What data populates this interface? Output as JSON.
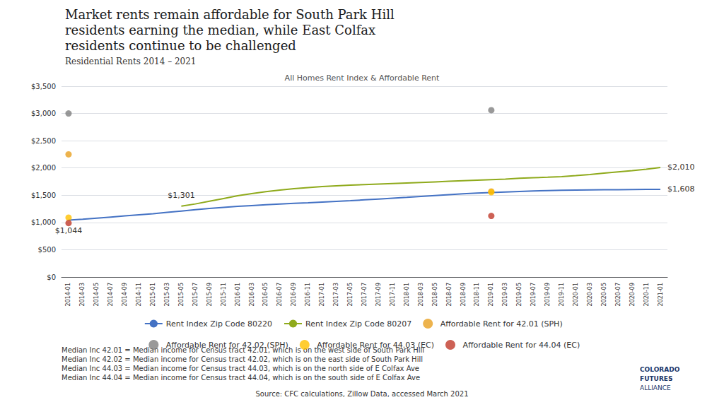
{
  "chart_data": {
    "type": "line",
    "title": "Market rents remain affordable for South Park Hill\nresidents earning the median, while East Colfax\nresidents continue to be challenged",
    "subtitle": "Residential Rents 2014 – 2021",
    "plot_title": "All Homes Rent Index & Affordable Rent",
    "categories": [
      "2014-01",
      "2014-03",
      "2014-05",
      "2014-07",
      "2014-09",
      "2014-11",
      "2015-01",
      "2015-03",
      "2015-05",
      "2015-07",
      "2015-09",
      "2015-11",
      "2016-01",
      "2016-03",
      "2016-05",
      "2016-07",
      "2016-09",
      "2016-11",
      "2017-01",
      "2017-03",
      "2017-05",
      "2017-07",
      "2017-09",
      "2017-11",
      "2018-01",
      "2018-03",
      "2018-05",
      "2018-07",
      "2018-09",
      "2018-11",
      "2019-01",
      "2019-03",
      "2019-05",
      "2019-07",
      "2019-09",
      "2019-11",
      "2020-01",
      "2020-03",
      "2020-05",
      "2020-07",
      "2020-09",
      "2020-11",
      "2021-01"
    ],
    "series": [
      {
        "name": "Rent Index Zip Code 80220",
        "type": "line",
        "color": "#4472c4",
        "values": [
          1044,
          1060,
          1080,
          1100,
          1120,
          1140,
          1160,
          1185,
          1210,
          1235,
          1258,
          1278,
          1295,
          1310,
          1325,
          1338,
          1350,
          1362,
          1375,
          1388,
          1400,
          1415,
          1430,
          1445,
          1460,
          1478,
          1495,
          1510,
          1525,
          1538,
          1550,
          1560,
          1570,
          1578,
          1585,
          1590,
          1595,
          1598,
          1600,
          1602,
          1604,
          1606,
          1608
        ],
        "value_labels": [
          "$1,044",
          null,
          null,
          null,
          null,
          null,
          null,
          null,
          null,
          null,
          null,
          null,
          null,
          null,
          null,
          null,
          null,
          null,
          null,
          null,
          null,
          null,
          null,
          null,
          null,
          null,
          null,
          null,
          null,
          null,
          null,
          null,
          null,
          null,
          null,
          null,
          null,
          null,
          null,
          null,
          null,
          null,
          "$1,608"
        ]
      },
      {
        "name": "Rent Index Zip Code 80207",
        "type": "line",
        "color": "#8faa1c",
        "values": [
          null,
          null,
          null,
          null,
          null,
          null,
          null,
          null,
          1301,
          1340,
          1390,
          1440,
          1490,
          1530,
          1565,
          1595,
          1620,
          1640,
          1658,
          1672,
          1685,
          1695,
          1705,
          1715,
          1725,
          1735,
          1745,
          1755,
          1765,
          1775,
          1785,
          1795,
          1810,
          1820,
          1830,
          1842,
          1860,
          1880,
          1905,
          1928,
          1950,
          1978,
          2010
        ],
        "value_labels": [
          null,
          null,
          null,
          null,
          null,
          null,
          null,
          null,
          "$1,301",
          null,
          null,
          null,
          null,
          null,
          null,
          null,
          null,
          null,
          null,
          null,
          null,
          null,
          null,
          null,
          null,
          null,
          null,
          null,
          null,
          null,
          null,
          null,
          null,
          null,
          null,
          null,
          null,
          null,
          null,
          null,
          null,
          null,
          "$2,010"
        ]
      },
      {
        "name": "Affordable Rent for 42.01 (SPH)",
        "type": "scatter",
        "color": "#e8a020",
        "values": [
          2250,
          null,
          null,
          null,
          null,
          null,
          null,
          null,
          null,
          null,
          null,
          null,
          null,
          null,
          null,
          null,
          null,
          null,
          null,
          null,
          null,
          null,
          null,
          null,
          null,
          null,
          null,
          null,
          null,
          null,
          1570,
          null,
          null,
          null,
          null,
          null,
          null,
          null,
          null,
          null,
          null,
          null,
          null
        ]
      },
      {
        "name": "Affordable Rent for 42.02 (SPH)",
        "type": "scatter",
        "color": "#7f7f7f",
        "values": [
          3000,
          null,
          null,
          null,
          null,
          null,
          null,
          null,
          null,
          null,
          null,
          null,
          null,
          null,
          null,
          null,
          null,
          null,
          null,
          null,
          null,
          null,
          null,
          null,
          null,
          null,
          null,
          null,
          null,
          null,
          3060,
          null,
          null,
          null,
          null,
          null,
          null,
          null,
          null,
          null,
          null,
          null,
          null
        ]
      },
      {
        "name": "Affordable Rent for 44.03 (EC)",
        "type": "scatter",
        "color": "#ffc000",
        "values": [
          1090,
          null,
          null,
          null,
          null,
          null,
          null,
          null,
          null,
          null,
          null,
          null,
          null,
          null,
          null,
          null,
          null,
          null,
          null,
          null,
          null,
          null,
          null,
          null,
          null,
          null,
          null,
          null,
          null,
          null,
          1555,
          null,
          null,
          null,
          null,
          null,
          null,
          null,
          null,
          null,
          null,
          null,
          null
        ]
      },
      {
        "name": "Affordable Rent for 44.04 (EC)",
        "type": "scatter",
        "color": "#c0392b",
        "values": [
          990,
          null,
          null,
          null,
          null,
          null,
          null,
          null,
          null,
          null,
          null,
          null,
          null,
          null,
          null,
          null,
          null,
          null,
          null,
          null,
          null,
          null,
          null,
          null,
          null,
          null,
          null,
          null,
          null,
          null,
          1120,
          null,
          null,
          null,
          null,
          null,
          null,
          null,
          null,
          null,
          null,
          null,
          null
        ]
      }
    ],
    "ylim": [
      0,
      3500
    ],
    "yticks": [
      {
        "value": 0,
        "label": "$0"
      },
      {
        "value": 500,
        "label": "$500"
      },
      {
        "value": 1000,
        "label": "$1,000"
      },
      {
        "value": 1500,
        "label": "$1,500"
      },
      {
        "value": 2000,
        "label": "$2,000"
      },
      {
        "value": 2500,
        "label": "$2,500"
      },
      {
        "value": 3000,
        "label": "$3,000"
      },
      {
        "value": 3500,
        "label": "$3,500"
      }
    ],
    "grid": true,
    "legend": "bottom",
    "footnotes": [
      "Median Inc 42.01 = Median income for Census tract 42.01, which is on the west side of South Park Hill",
      "Median Inc 42.02 = Median income for Census tract 42.02, which is on the east side of South Park Hill",
      "Median Inc 44.03 = Median income for Census tract 44.03, which is on the north side of E Colfax Ave",
      "Median Inc 44.04 = Median income for Census tract 44.04, which is on the south side of E Colfax Ave"
    ],
    "source": "Source: CFC calculations, Zillow Data, accessed March 2021",
    "logo_text": [
      "COLORADO",
      "FUTURES",
      "ALLIANCE"
    ]
  }
}
